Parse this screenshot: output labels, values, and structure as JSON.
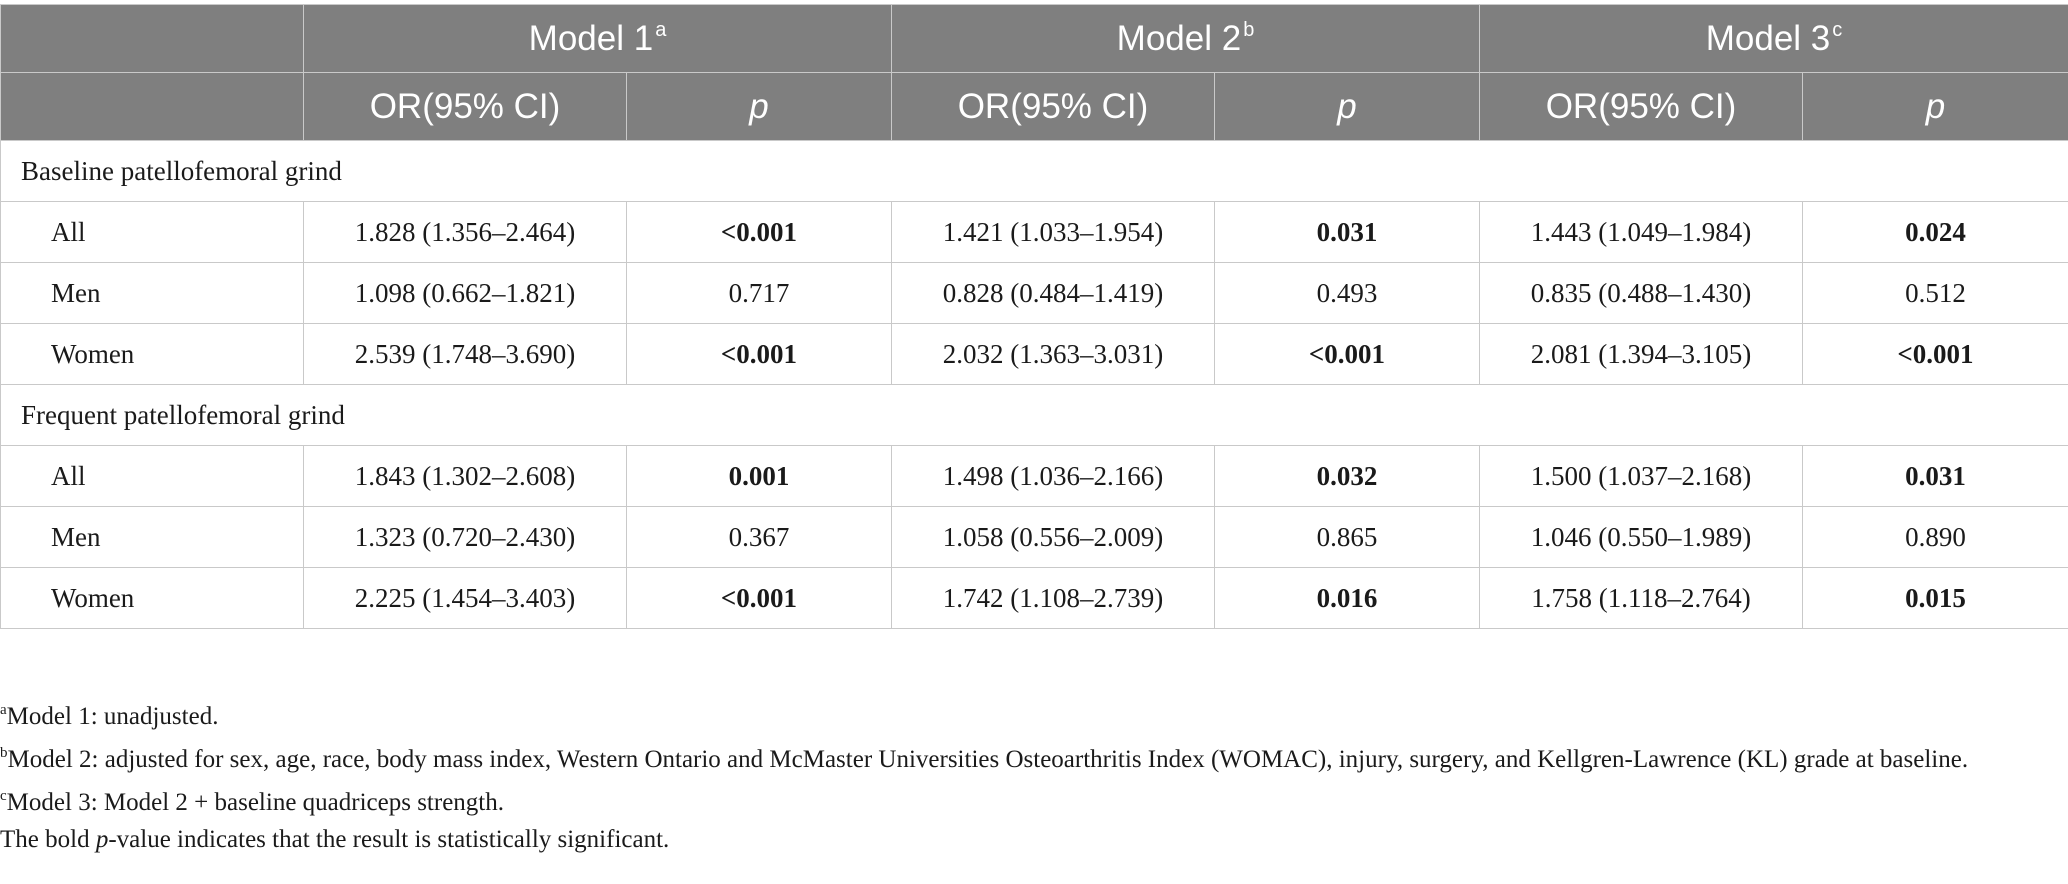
{
  "header": {
    "models": [
      {
        "label": "Model 1",
        "sup": "a"
      },
      {
        "label": "Model 2",
        "sup": "b"
      },
      {
        "label": "Model 3",
        "sup": "c"
      }
    ],
    "or_label": "OR(95% CI)",
    "p_label": "p"
  },
  "sections": [
    {
      "title": "Baseline patellofemoral grind",
      "rows": [
        {
          "label": "All",
          "m1_or": "1.828 (1.356–2.464)",
          "m1_p": "<0.001",
          "m2_or": "1.421 (1.033–1.954)",
          "m2_p": "0.031",
          "m3_or": "1.443 (1.049–1.984)",
          "m3_p": "0.024"
        },
        {
          "label": "Men",
          "m1_or": "1.098 (0.662–1.821)",
          "m1_p": "0.717",
          "m2_or": "0.828 (0.484–1.419)",
          "m2_p": "0.493",
          "m3_or": "0.835 (0.488–1.430)",
          "m3_p": "0.512"
        },
        {
          "label": "Women",
          "m1_or": "2.539 (1.748–3.690)",
          "m1_p": "<0.001",
          "m2_or": "2.032 (1.363–3.031)",
          "m2_p": "<0.001",
          "m3_or": "2.081 (1.394–3.105)",
          "m3_p": "<0.001"
        }
      ]
    },
    {
      "title": "Frequent patellofemoral grind",
      "rows": [
        {
          "label": "All",
          "m1_or": "1.843 (1.302–2.608)",
          "m1_p": "0.001",
          "m2_or": "1.498 (1.036–2.166)",
          "m2_p": "0.032",
          "m3_or": "1.500 (1.037–2.168)",
          "m3_p": "0.031"
        },
        {
          "label": "Men",
          "m1_or": "1.323 (0.720–2.430)",
          "m1_p": "0.367",
          "m2_or": "1.058 (0.556–2.009)",
          "m2_p": "0.865",
          "m3_or": "1.046 (0.550–1.989)",
          "m3_p": "0.890"
        },
        {
          "label": "Women",
          "m1_or": "2.225 (1.454–3.403)",
          "m1_p": "<0.001",
          "m2_or": "1.742 (1.108–2.739)",
          "m2_p": "0.016",
          "m3_or": "1.758 (1.118–2.764)",
          "m3_p": "0.015"
        }
      ]
    }
  ],
  "notes": {
    "a_sup": "a",
    "a_text": "Model 1: unadjusted.",
    "b_sup": "b",
    "b_text": "Model 2: adjusted for sex, age, race, body mass index, Western Ontario and McMaster Universities Osteoarthritis Index (WOMAC), injury, surgery, and Kellgren-Lawrence (KL) grade at baseline.",
    "c_sup": "c",
    "c_text": "Model 3: Model 2 + baseline quadriceps strength.",
    "bold_pre": "The bold ",
    "bold_p": "p",
    "bold_post": "-value indicates that the result is statistically significant."
  }
}
